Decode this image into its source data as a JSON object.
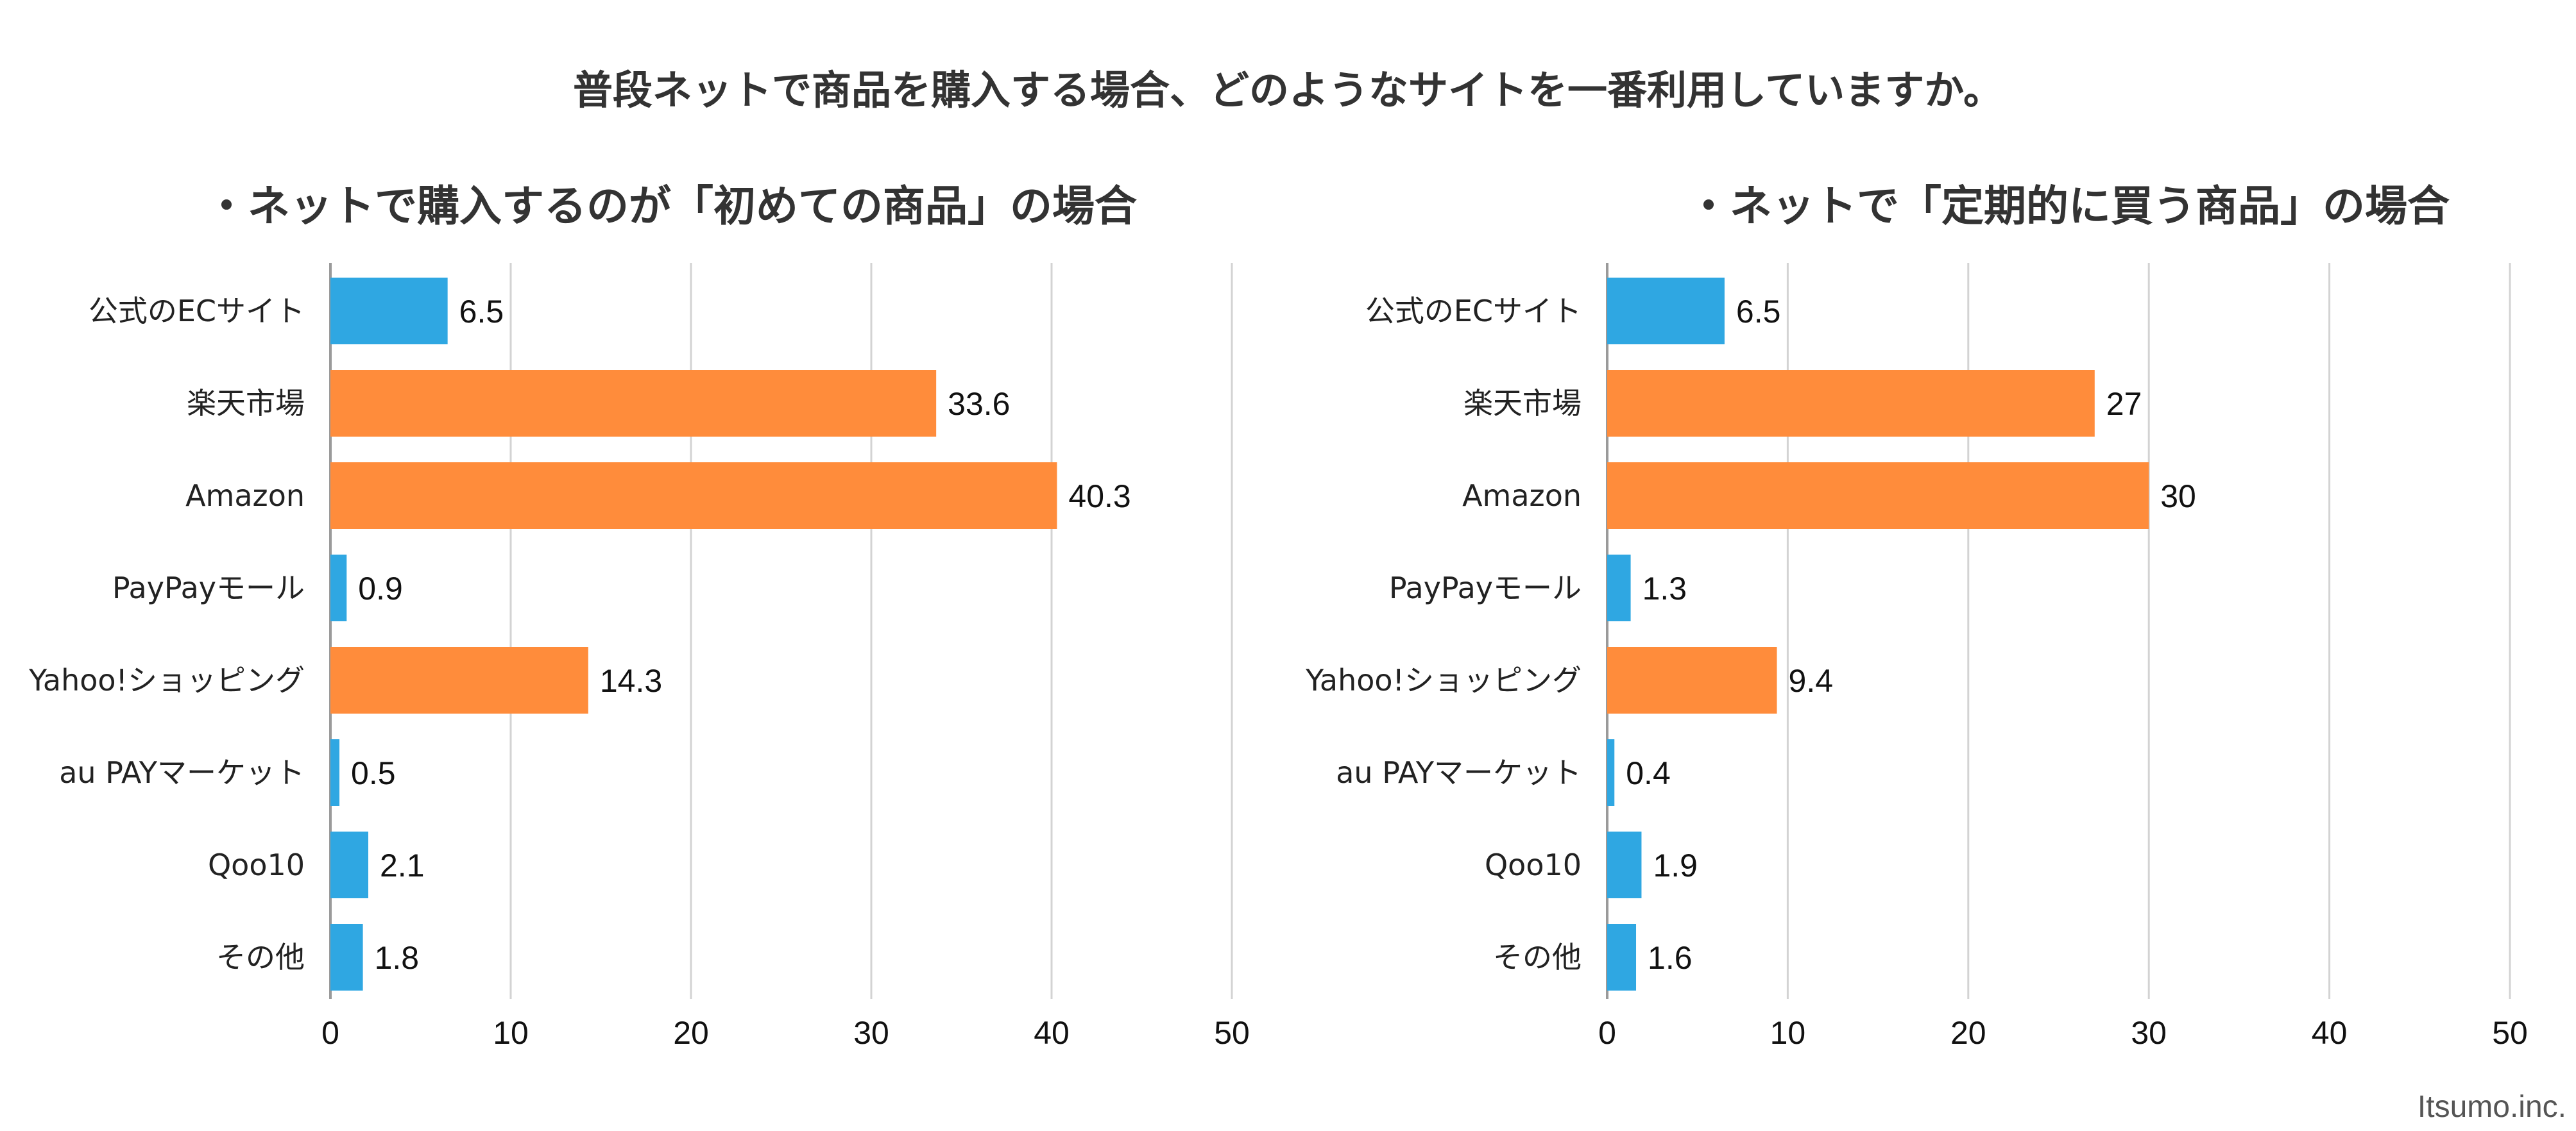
{
  "title": "普段ネットで商品を購入する場合、どのようなサイトを一番利用していますか。",
  "credit": "Itsumo.inc.",
  "colors": {
    "blue": "#2FA7E2",
    "orange": "#FF8C3B",
    "grid": "#D3D3D3"
  },
  "chart_data": [
    {
      "type": "bar",
      "orientation": "horizontal",
      "title": "・ネットで購入するのが「初めての商品」の場合",
      "categories": [
        "公式のECサイト",
        "楽天市場",
        "Amazon",
        "PayPayモール",
        "Yahoo!ショッピング",
        "au PAYマーケット",
        "Qoo10",
        "その他"
      ],
      "values": [
        6.5,
        33.6,
        40.3,
        0.9,
        14.3,
        0.5,
        2.1,
        1.8
      ],
      "value_labels": [
        "6.5",
        "33.6",
        "40.3",
        "0.9",
        "14.3",
        "0.5",
        "2.1",
        "1.8"
      ],
      "bar_colors": [
        "blue",
        "orange",
        "orange",
        "blue",
        "orange",
        "blue",
        "blue",
        "blue"
      ],
      "xlim": [
        0,
        50
      ],
      "xticks": [
        "0",
        "10",
        "20",
        "30",
        "40",
        "50"
      ],
      "grid": true
    },
    {
      "type": "bar",
      "orientation": "horizontal",
      "title": "・ネットで「定期的に買う商品」の場合",
      "categories": [
        "公式のECサイト",
        "楽天市場",
        "Amazon",
        "PayPayモール",
        "Yahoo!ショッピング",
        "au PAYマーケット",
        "Qoo10",
        "その他"
      ],
      "values": [
        6.5,
        27,
        30,
        1.3,
        9.4,
        0.4,
        1.9,
        1.6
      ],
      "value_labels": [
        "6.5",
        "27",
        "30",
        "1.3",
        "9.4",
        "0.4",
        "1.9",
        "1.6"
      ],
      "bar_colors": [
        "blue",
        "orange",
        "orange",
        "blue",
        "orange",
        "blue",
        "blue",
        "blue"
      ],
      "xlim": [
        0,
        50
      ],
      "xticks": [
        "0",
        "10",
        "20",
        "30",
        "40",
        "50"
      ],
      "grid": true
    }
  ]
}
